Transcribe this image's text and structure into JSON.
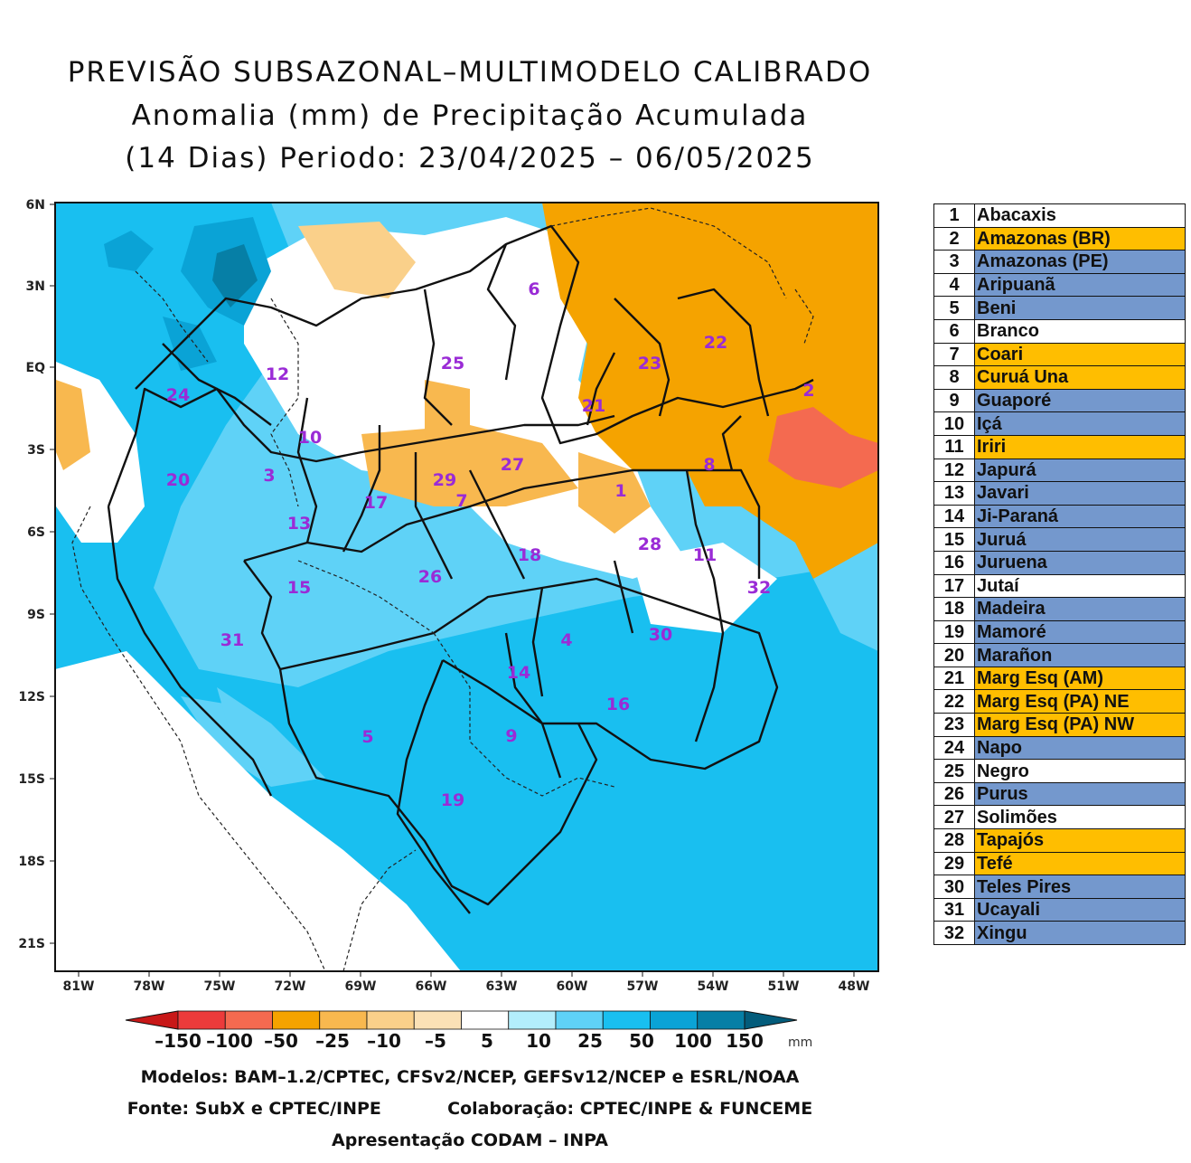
{
  "title": {
    "line1": "PREVISÃO SUBSAZONAL–MULTIMODELO CALIBRADO",
    "line2": "Anomalia (mm) de Precipitação Acumulada",
    "line3": "(14 Dias) Periodo: 23/04/2025 – 06/05/2025"
  },
  "map": {
    "lat_labels": [
      "6N",
      "3N",
      "EQ",
      "3S",
      "6S",
      "9S",
      "12S",
      "15S",
      "18S",
      "21S"
    ],
    "lon_labels": [
      "81W",
      "78W",
      "75W",
      "72W",
      "69W",
      "66W",
      "63W",
      "60W",
      "57W",
      "54W",
      "51W",
      "48W"
    ],
    "basin_labels": [
      "1",
      "2",
      "3",
      "4",
      "5",
      "6",
      "7",
      "8",
      "9",
      "10",
      "11",
      "12",
      "13",
      "14",
      "15",
      "16",
      "17",
      "18",
      "19",
      "20",
      "21",
      "22",
      "23",
      "24",
      "25",
      "26",
      "27",
      "28",
      "29",
      "30",
      "31",
      "32"
    ]
  },
  "colorbar": {
    "labels": [
      "–150",
      "–100",
      "–50",
      "–25",
      "–10",
      "–5",
      "5",
      "10",
      "25",
      "50",
      "100",
      "150"
    ],
    "unit": "mm",
    "colors": [
      "#c81818",
      "#ec3b3b",
      "#f46a50",
      "#f5a300",
      "#f8b84f",
      "#fad08a",
      "#fbe1b6",
      "#ffffff",
      "#b3eefc",
      "#5fd2f7",
      "#19bff0",
      "#0aa3d6",
      "#067fa6",
      "#035c7b"
    ]
  },
  "credits": {
    "models": "Modelos: BAM–1.2/CPTEC, CFSv2/NCEP, GEFSv12/NCEP e ESRL/NOAA",
    "source": "Fonte: SubX e CPTEC/INPE",
    "collab": "Colaboração: CPTEC/INPE & FUNCEME",
    "presentation": "Apresentação CODAM – INPA"
  },
  "legend_colors": {
    "white": "#ffffff",
    "orange": "#ffbe00",
    "blue": "#7498cd"
  },
  "legend": [
    {
      "num": "1",
      "name": "Abacaxis",
      "color": "white"
    },
    {
      "num": "2",
      "name": "Amazonas (BR)",
      "color": "orange"
    },
    {
      "num": "3",
      "name": "Amazonas (PE)",
      "color": "blue"
    },
    {
      "num": "4",
      "name": "Aripuanã",
      "color": "blue"
    },
    {
      "num": "5",
      "name": "Beni",
      "color": "blue"
    },
    {
      "num": "6",
      "name": "Branco",
      "color": "white"
    },
    {
      "num": "7",
      "name": "Coari",
      "color": "orange"
    },
    {
      "num": "8",
      "name": "Curuá Una",
      "color": "orange"
    },
    {
      "num": "9",
      "name": "Guaporé",
      "color": "blue"
    },
    {
      "num": "10",
      "name": "Içá",
      "color": "blue"
    },
    {
      "num": "11",
      "name": "Iriri",
      "color": "orange"
    },
    {
      "num": "12",
      "name": "Japurá",
      "color": "blue"
    },
    {
      "num": "13",
      "name": "Javari",
      "color": "blue"
    },
    {
      "num": "14",
      "name": "Ji-Paraná",
      "color": "blue"
    },
    {
      "num": "15",
      "name": "Juruá",
      "color": "blue"
    },
    {
      "num": "16",
      "name": "Juruena",
      "color": "blue"
    },
    {
      "num": "17",
      "name": "Jutaí",
      "color": "white"
    },
    {
      "num": "18",
      "name": "Madeira",
      "color": "blue"
    },
    {
      "num": "19",
      "name": "Mamoré",
      "color": "blue"
    },
    {
      "num": "20",
      "name": "Marañon",
      "color": "blue"
    },
    {
      "num": "21",
      "name": "Marg Esq (AM)",
      "color": "orange"
    },
    {
      "num": "22",
      "name": "Marg Esq (PA) NE",
      "color": "orange"
    },
    {
      "num": "23",
      "name": "Marg Esq (PA) NW",
      "color": "orange"
    },
    {
      "num": "24",
      "name": "Napo",
      "color": "blue"
    },
    {
      "num": "25",
      "name": "Negro",
      "color": "white"
    },
    {
      "num": "26",
      "name": "Purus",
      "color": "blue"
    },
    {
      "num": "27",
      "name": "Solimões",
      "color": "white"
    },
    {
      "num": "28",
      "name": "Tapajós",
      "color": "orange"
    },
    {
      "num": "29",
      "name": "Tefé",
      "color": "orange"
    },
    {
      "num": "30",
      "name": "Teles Pires",
      "color": "blue"
    },
    {
      "num": "31",
      "name": "Ucayali",
      "color": "blue"
    },
    {
      "num": "32",
      "name": "Xingu",
      "color": "blue"
    }
  ]
}
